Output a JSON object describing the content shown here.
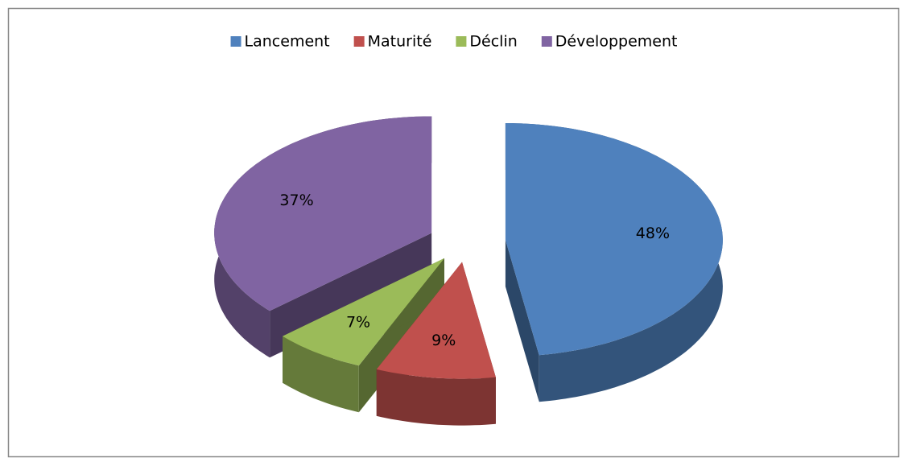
{
  "chart_data": {
    "type": "pie",
    "categories": [
      "Lancement",
      "Maturité",
      "Déclin",
      "Développement"
    ],
    "values": [
      48,
      9,
      7,
      37
    ],
    "value_labels": [
      "48%",
      "9%",
      "7%",
      "37%"
    ],
    "colors": [
      "#4f81bd",
      "#c0504d",
      "#9bbb59",
      "#8064a2"
    ],
    "legend": "top"
  }
}
